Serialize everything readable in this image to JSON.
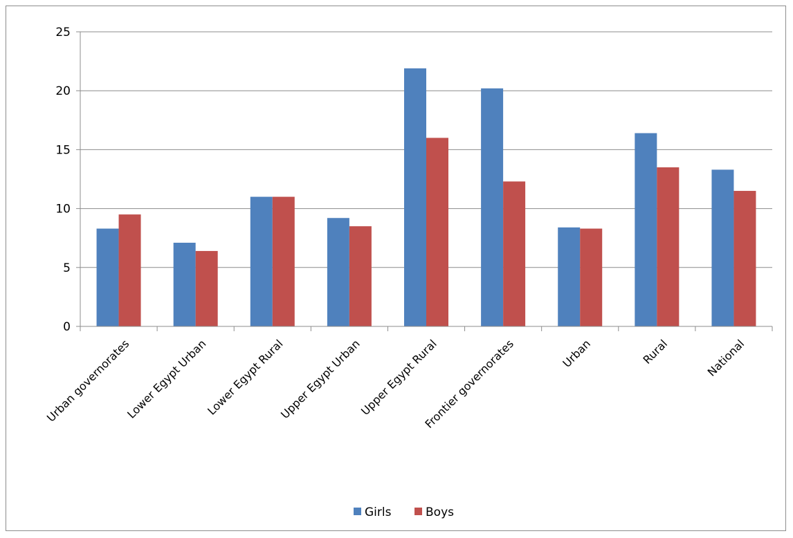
{
  "chart_data": {
    "type": "bar",
    "title": "",
    "xlabel": "",
    "ylabel": "",
    "ylim": [
      0,
      25
    ],
    "yticks": [
      0,
      5,
      10,
      15,
      20,
      25
    ],
    "grid": true,
    "legend_position": "bottom",
    "categories": [
      "Urban governorates",
      "Lower Egypt Urban",
      "Lower Egypt Rural",
      "Upper Egypt Urban",
      "Upper Egypt Rural",
      "Frontier governorates",
      "Urban",
      "Rural",
      "National"
    ],
    "series": [
      {
        "name": "Girls",
        "color": "#4f81bd",
        "values": [
          8.3,
          7.1,
          11.0,
          9.2,
          21.9,
          20.2,
          8.4,
          16.4,
          13.3
        ]
      },
      {
        "name": "Boys",
        "color": "#c0504d",
        "values": [
          9.5,
          6.4,
          11.0,
          8.5,
          16.0,
          12.3,
          8.3,
          13.5,
          11.5
        ]
      }
    ]
  }
}
